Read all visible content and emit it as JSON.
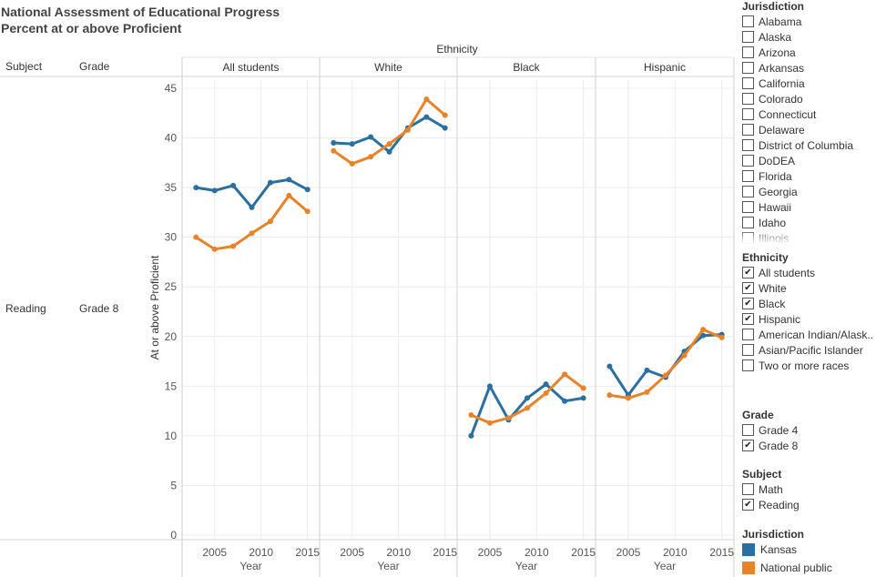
{
  "title_line1": "National Assessment of Educational Progress",
  "title_line2": "Percent at or above Proficient",
  "header": {
    "ethnicity": "Ethnicity",
    "subject": "Subject",
    "grade": "Grade",
    "panels": [
      "All students",
      "White",
      "Black",
      "Hispanic"
    ]
  },
  "row": {
    "subject": "Reading",
    "grade": "Grade 8"
  },
  "colors": {
    "kansas": "#2a6f9f",
    "national": "#e8832a",
    "grid": "#ececec",
    "divider": "#cfcfcf"
  },
  "chart_data": {
    "type": "line",
    "title": "National Assessment of Educational Progress",
    "subtitle": "Percent at or above Proficient",
    "ylabel": "At or above Proficient",
    "xlabel": "Year",
    "ylim": [
      0,
      45
    ],
    "yticks": [
      0,
      5,
      10,
      15,
      20,
      25,
      30,
      35,
      40,
      45
    ],
    "xticks": [
      2005,
      2010,
      2015
    ],
    "xlim": [
      2001.5,
      2016.3
    ],
    "x": [
      2003,
      2005,
      2007,
      2009,
      2011,
      2013,
      2015
    ],
    "panels": [
      {
        "name": "All students",
        "series": [
          {
            "name": "Kansas",
            "values": [
              35.0,
              34.7,
              35.2,
              33.0,
              35.5,
              35.8,
              34.8
            ]
          },
          {
            "name": "National public",
            "values": [
              30.0,
              28.8,
              29.1,
              30.4,
              31.6,
              34.2,
              32.6
            ]
          }
        ]
      },
      {
        "name": "White",
        "series": [
          {
            "name": "Kansas",
            "values": [
              39.5,
              39.4,
              40.1,
              38.6,
              41.0,
              42.1,
              41.0
            ]
          },
          {
            "name": "National public",
            "values": [
              38.7,
              37.4,
              38.1,
              39.4,
              40.8,
              43.9,
              42.3
            ]
          }
        ]
      },
      {
        "name": "Black",
        "series": [
          {
            "name": "Kansas",
            "values": [
              10.0,
              15.0,
              11.6,
              13.8,
              15.2,
              13.5,
              13.8
            ]
          },
          {
            "name": "National public",
            "values": [
              12.1,
              11.3,
              11.8,
              12.8,
              14.3,
              16.2,
              14.8
            ]
          }
        ]
      },
      {
        "name": "Hispanic",
        "series": [
          {
            "name": "Kansas",
            "values": [
              17.0,
              14.1,
              16.6,
              15.9,
              18.5,
              20.1,
              20.2
            ]
          },
          {
            "name": "National public",
            "values": [
              14.1,
              13.8,
              14.4,
              16.1,
              18.1,
              20.7,
              19.9
            ]
          }
        ]
      }
    ]
  },
  "filters": {
    "jurisdiction": {
      "title": "Jurisdiction",
      "items": [
        {
          "label": "Alabama",
          "checked": false
        },
        {
          "label": "Alaska",
          "checked": false
        },
        {
          "label": "Arizona",
          "checked": false
        },
        {
          "label": "Arkansas",
          "checked": false
        },
        {
          "label": "California",
          "checked": false
        },
        {
          "label": "Colorado",
          "checked": false
        },
        {
          "label": "Connecticut",
          "checked": false
        },
        {
          "label": "Delaware",
          "checked": false
        },
        {
          "label": "District of Columbia",
          "checked": false
        },
        {
          "label": "DoDEA",
          "checked": false
        },
        {
          "label": "Florida",
          "checked": false
        },
        {
          "label": "Georgia",
          "checked": false
        },
        {
          "label": "Hawaii",
          "checked": false
        },
        {
          "label": "Idaho",
          "checked": false
        },
        {
          "label": "Illinois",
          "checked": false
        }
      ]
    },
    "ethnicity": {
      "title": "Ethnicity",
      "items": [
        {
          "label": "All students",
          "checked": true
        },
        {
          "label": "White",
          "checked": true
        },
        {
          "label": "Black",
          "checked": true
        },
        {
          "label": "Hispanic",
          "checked": true
        },
        {
          "label": "American Indian/Alask..",
          "checked": false
        },
        {
          "label": "Asian/Pacific Islander",
          "checked": false
        },
        {
          "label": "Two or more races",
          "checked": false
        }
      ]
    },
    "grade": {
      "title": "Grade",
      "items": [
        {
          "label": "Grade 4",
          "checked": false
        },
        {
          "label": "Grade 8",
          "checked": true
        }
      ]
    },
    "subject": {
      "title": "Subject",
      "items": [
        {
          "label": "Math",
          "checked": false
        },
        {
          "label": "Reading",
          "checked": true
        }
      ]
    }
  },
  "legend": {
    "title": "Jurisdiction",
    "items": [
      "Kansas",
      "National public"
    ]
  }
}
